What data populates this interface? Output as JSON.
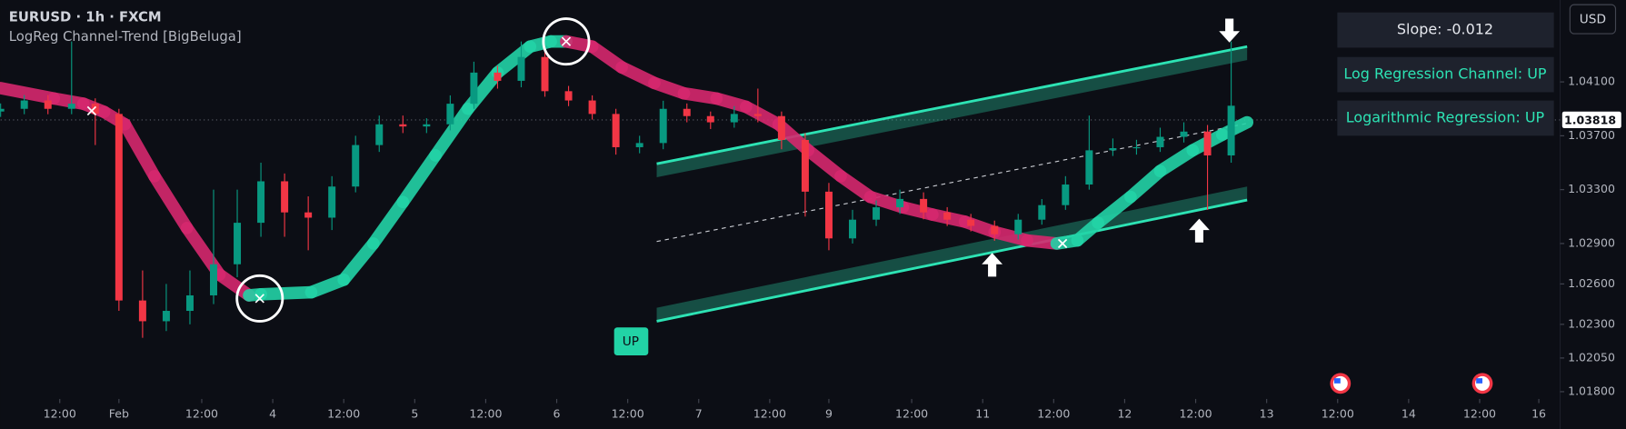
{
  "chart_data": {
    "type": "candlestick",
    "title": "EURUSD · 1h · FXCM",
    "subtitle": "LogReg Channel-Trend [BigBeluga]",
    "currency": "USD",
    "table": [
      "Slope: -0.012",
      "Log Regression Channel: UP",
      "Logarithmic Regression: UP"
    ],
    "up_color": "#089981",
    "down_color": "#f23645",
    "trend_up_color": "#22d3a6",
    "trend_down_color": "#d6286e",
    "xlim": [
      0,
      263.6
    ],
    "ylim": [
      1.01746,
      1.04708
    ],
    "yticks": [
      {
        "value": 1.041,
        "label": "1.04100"
      },
      {
        "value": 1.037,
        "label": "1.03700"
      },
      {
        "value": 1.033,
        "label": "1.03300"
      },
      {
        "value": 1.029,
        "label": "1.02900"
      },
      {
        "value": 1.026,
        "label": "1.02600"
      },
      {
        "value": 1.023,
        "label": "1.02300"
      },
      {
        "value": 1.0205,
        "label": "1.02050"
      },
      {
        "value": 1.018,
        "label": "1.01800"
      }
    ],
    "xticks": [
      {
        "value": 10,
        "label": "12:00"
      },
      {
        "value": 20,
        "label": "Feb"
      },
      {
        "value": 34,
        "label": "12:00"
      },
      {
        "value": 46,
        "label": "4"
      },
      {
        "value": 58,
        "label": "12:00"
      },
      {
        "value": 70,
        "label": "5"
      },
      {
        "value": 82,
        "label": "12:00"
      },
      {
        "value": 94,
        "label": "6"
      },
      {
        "value": 106,
        "label": "12:00"
      },
      {
        "value": 118,
        "label": "7"
      },
      {
        "value": 130,
        "label": "12:00"
      },
      {
        "value": 140,
        "label": "9"
      },
      {
        "value": 154,
        "label": "12:00"
      },
      {
        "value": 166,
        "label": "11"
      },
      {
        "value": 178,
        "label": "12:00"
      },
      {
        "value": 190,
        "label": "12"
      },
      {
        "value": 202,
        "label": "12:00"
      },
      {
        "value": 214,
        "label": "13"
      },
      {
        "value": 226,
        "label": "12:00"
      },
      {
        "value": 238,
        "label": "14"
      },
      {
        "value": 250,
        "label": "12:00"
      },
      {
        "value": 260,
        "label": "16"
      }
    ],
    "last_price": 1.03818,
    "candles": {
      "x": [
        0,
        4,
        8,
        12,
        16,
        20,
        24,
        28,
        32,
        36,
        40,
        44,
        48,
        52,
        56,
        60,
        64,
        68,
        72,
        76,
        80,
        84,
        88,
        92,
        96,
        100,
        104,
        108,
        112,
        116,
        120,
        124,
        128,
        132,
        136,
        140,
        144,
        148,
        152,
        156,
        160,
        164,
        168,
        172,
        176,
        180,
        184,
        188,
        192,
        196,
        200,
        204,
        208
      ],
      "open": [
        1.0388,
        1.039,
        1.03962,
        1.039,
        1.03938,
        1.03862,
        1.02477,
        1.02323,
        1.024,
        1.02515,
        1.02746,
        1.03054,
        1.03362,
        1.03131,
        1.03092,
        1.03323,
        1.03631,
        1.03785,
        1.03769,
        1.03785,
        1.03938,
        1.04169,
        1.04108,
        1.04285,
        1.04031,
        1.03962,
        1.03862,
        1.03615,
        1.03646,
        1.039,
        1.03846,
        1.038,
        1.03862,
        1.03846,
        1.03669,
        1.03285,
        1.02938,
        1.03077,
        1.03169,
        1.03231,
        1.03131,
        1.03077,
        1.03031,
        1.02969,
        1.03077,
        1.03185,
        1.03338,
        1.03592,
        1.03608,
        1.03615,
        1.03692,
        1.03731,
        1.03554
      ],
      "high": [
        1.0394,
        1.04002,
        1.04002,
        1.044,
        1.03978,
        1.039,
        1.027,
        1.026,
        1.027,
        1.033,
        1.033,
        1.035,
        1.0342,
        1.0325,
        1.034,
        1.037,
        1.0385,
        1.0385,
        1.0383,
        1.04,
        1.0425,
        1.0422,
        1.044,
        1.0432,
        1.0407,
        1.04,
        1.039,
        1.037,
        1.0396,
        1.0394,
        1.0388,
        1.0392,
        1.0405,
        1.0388,
        1.0372,
        1.0335,
        1.0315,
        1.0322,
        1.033,
        1.0328,
        1.0317,
        1.0312,
        1.0307,
        1.0312,
        1.0323,
        1.034,
        1.0385,
        1.0368,
        1.0367,
        1.0376,
        1.038,
        1.0378,
        1.044
      ],
      "low": [
        1.0384,
        1.0386,
        1.0386,
        1.0386,
        1.03631,
        1.024,
        1.022,
        1.0225,
        1.023,
        1.0245,
        1.0265,
        1.0295,
        1.0295,
        1.0285,
        1.03,
        1.0328,
        1.0358,
        1.0372,
        1.0372,
        1.0374,
        1.039,
        1.0405,
        1.0406,
        1.0399,
        1.0392,
        1.0382,
        1.0356,
        1.0357,
        1.036,
        1.038,
        1.0375,
        1.0376,
        1.038,
        1.036,
        1.031,
        1.0285,
        1.029,
        1.0303,
        1.0312,
        1.0308,
        1.0303,
        1.0299,
        1.0292,
        1.0293,
        1.0304,
        1.0315,
        1.033,
        1.0355,
        1.0356,
        1.0358,
        1.0365,
        1.0315,
        1.035
      ],
      "close": [
        1.039,
        1.03962,
        1.039,
        1.03938,
        1.03862,
        1.02477,
        1.02323,
        1.024,
        1.02515,
        1.02746,
        1.03054,
        1.03362,
        1.03131,
        1.03092,
        1.03323,
        1.03631,
        1.03785,
        1.03769,
        1.03785,
        1.03938,
        1.04169,
        1.04108,
        1.04285,
        1.04031,
        1.03962,
        1.03862,
        1.03615,
        1.03646,
        1.039,
        1.03846,
        1.038,
        1.03862,
        1.03846,
        1.03669,
        1.03285,
        1.02938,
        1.03077,
        1.03169,
        1.03231,
        1.03131,
        1.03077,
        1.03031,
        1.02969,
        1.03077,
        1.03185,
        1.03338,
        1.03592,
        1.03608,
        1.03615,
        1.03692,
        1.03731,
        1.03554,
        1.03923
      ]
    },
    "trend": {
      "x": [
        0,
        9,
        14,
        17.5,
        21,
        26,
        31.5,
        37,
        42,
        44,
        52.5,
        58,
        63,
        68,
        73.5,
        79,
        84,
        89.5,
        93,
        95.6,
        100,
        105,
        110.5,
        115.5,
        121,
        126,
        131.5,
        136.5,
        142,
        147,
        152.5,
        157.5,
        163,
        168,
        173.5,
        178.5,
        182,
        185.5,
        191,
        196,
        201.5,
        206.5,
        210.7
      ],
      "values": [
        1.04054,
        1.03977,
        1.03938,
        1.03877,
        1.03785,
        1.034,
        1.03015,
        1.02669,
        1.02515,
        1.02523,
        1.02538,
        1.02631,
        1.029,
        1.03208,
        1.03554,
        1.039,
        1.04169,
        1.04362,
        1.044,
        1.044,
        1.04362,
        1.04208,
        1.04092,
        1.04015,
        1.03977,
        1.03915,
        1.03785,
        1.03592,
        1.034,
        1.03246,
        1.03169,
        1.03115,
        1.03062,
        1.02985,
        1.02923,
        1.029,
        1.02923,
        1.03054,
        1.03246,
        1.03438,
        1.03592,
        1.03708,
        1.038
      ]
    },
    "channel": {
      "x": [
        110.9,
        210.7
      ],
      "upper": [
        1.03492,
        1.04362
      ],
      "mid": [
        1.02915,
        1.03792
      ],
      "lower": [
        1.02323,
        1.03223
      ],
      "color": "#2de3b4"
    },
    "crossovers": {
      "x": [
        15.4,
        43.8,
        95.6,
        179.5
      ],
      "y": [
        1.03885,
        1.02492,
        1.044,
        1.029
      ]
    },
    "circles": {
      "x": [
        43.8,
        95.6
      ],
      "y": [
        1.02492,
        1.044
      ]
    },
    "arrows": {
      "x": [
        207.7,
        167.6,
        202.6
      ],
      "y": [
        1.04477,
        1.02746,
        1.03
      ],
      "dir": [
        "down",
        "up",
        "up"
      ]
    },
    "annotation": {
      "text": "UP",
      "x": 106.5,
      "y": 1.02177
    }
  }
}
